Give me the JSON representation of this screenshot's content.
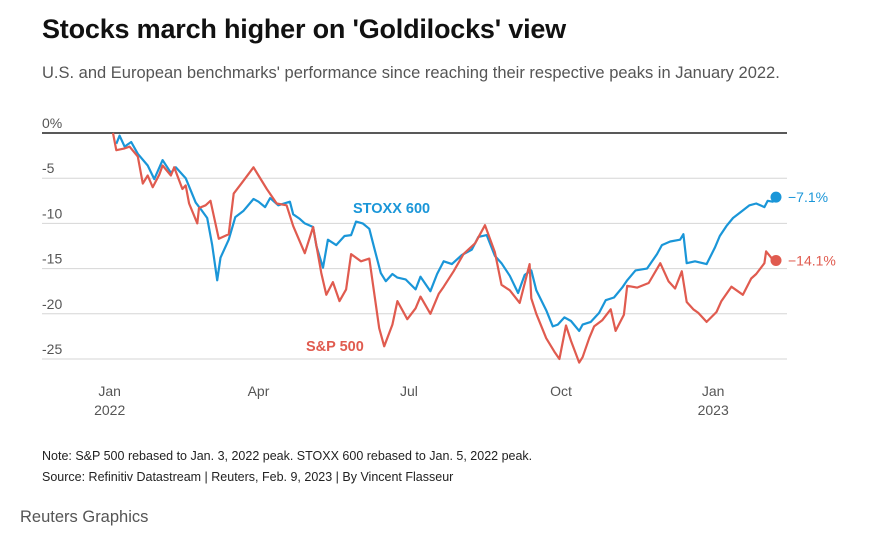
{
  "header": {
    "title": "Stocks march higher on 'Goldilocks' view",
    "subtitle": "U.S. and European benchmarks' performance since reaching their respective peaks in January 2022."
  },
  "footer": {
    "note": "Note: S&P 500 rebased to Jan. 3, 2022 peak. STOXX 600 rebased to Jan. 5, 2022 peak.",
    "source": "Source: Refinitiv Datastream | Reuters, Feb. 9, 2023 | By Vincent Flasseur",
    "brand": "Reuters Graphics"
  },
  "chart_data": {
    "type": "line",
    "title": "Stocks march higher on 'Goldilocks' view",
    "ylim": [
      -26,
      0
    ],
    "yticks": [
      {
        "value": 0,
        "label": "0%"
      },
      {
        "value": -5,
        "label": "-5"
      },
      {
        "value": -10,
        "label": "-10"
      },
      {
        "value": -15,
        "label": "-15"
      },
      {
        "value": -20,
        "label": "-20"
      },
      {
        "value": -25,
        "label": "-25"
      }
    ],
    "xlim": [
      "2022-01-01",
      "2023-02-09"
    ],
    "xticks": [
      {
        "date": "2022-01-01",
        "line1": "Jan",
        "line2": "2022"
      },
      {
        "date": "2022-04-01",
        "line1": "Apr",
        "line2": ""
      },
      {
        "date": "2022-07-01",
        "line1": "Jul",
        "line2": ""
      },
      {
        "date": "2022-10-01",
        "line1": "Oct",
        "line2": ""
      },
      {
        "date": "2023-01-01",
        "line1": "Jan",
        "line2": "2023"
      }
    ],
    "grid": true,
    "series": [
      {
        "name": "STOXX 600",
        "color": "#1a96d8",
        "end_label": "−7.1%",
        "points": [
          [
            "2022-01-05",
            -1.2
          ],
          [
            "2022-01-07",
            -0.3
          ],
          [
            "2022-01-10",
            -1.5
          ],
          [
            "2022-01-14",
            -1.0
          ],
          [
            "2022-01-18",
            -2.3
          ],
          [
            "2022-01-24",
            -3.6
          ],
          [
            "2022-01-28",
            -5.1
          ],
          [
            "2022-02-02",
            -3.0
          ],
          [
            "2022-02-07",
            -4.4
          ],
          [
            "2022-02-10",
            -3.8
          ],
          [
            "2022-02-16",
            -5.0
          ],
          [
            "2022-02-22",
            -7.7
          ],
          [
            "2022-02-25",
            -8.4
          ],
          [
            "2022-03-01",
            -9.4
          ],
          [
            "2022-03-04",
            -12.4
          ],
          [
            "2022-03-07",
            -16.3
          ],
          [
            "2022-03-09",
            -13.8
          ],
          [
            "2022-03-14",
            -11.8
          ],
          [
            "2022-03-18",
            -9.3
          ],
          [
            "2022-03-23",
            -8.6
          ],
          [
            "2022-03-29",
            -7.3
          ],
          [
            "2022-04-01",
            -7.6
          ],
          [
            "2022-04-05",
            -8.2
          ],
          [
            "2022-04-08",
            -7.2
          ],
          [
            "2022-04-13",
            -8.0
          ],
          [
            "2022-04-20",
            -7.6
          ],
          [
            "2022-04-22",
            -9.0
          ],
          [
            "2022-04-26",
            -9.5
          ],
          [
            "2022-04-29",
            -10.0
          ],
          [
            "2022-05-04",
            -10.4
          ],
          [
            "2022-05-06",
            -12.5
          ],
          [
            "2022-05-10",
            -14.9
          ],
          [
            "2022-05-13",
            -11.8
          ],
          [
            "2022-05-18",
            -12.4
          ],
          [
            "2022-05-23",
            -11.4
          ],
          [
            "2022-05-27",
            -11.3
          ],
          [
            "2022-05-30",
            -9.8
          ],
          [
            "2022-06-03",
            -10.0
          ],
          [
            "2022-06-07",
            -10.6
          ],
          [
            "2022-06-10",
            -12.7
          ],
          [
            "2022-06-14",
            -15.5
          ],
          [
            "2022-06-17",
            -16.4
          ],
          [
            "2022-06-21",
            -15.6
          ],
          [
            "2022-06-24",
            -16.0
          ],
          [
            "2022-06-29",
            -16.2
          ],
          [
            "2022-07-05",
            -17.3
          ],
          [
            "2022-07-08",
            -15.9
          ],
          [
            "2022-07-14",
            -17.5
          ],
          [
            "2022-07-18",
            -15.6
          ],
          [
            "2022-07-22",
            -14.2
          ],
          [
            "2022-07-27",
            -14.5
          ],
          [
            "2022-08-02",
            -13.5
          ],
          [
            "2022-08-08",
            -12.9
          ],
          [
            "2022-08-12",
            -11.5
          ],
          [
            "2022-08-17",
            -11.3
          ],
          [
            "2022-08-22",
            -13.6
          ],
          [
            "2022-08-26",
            -14.4
          ],
          [
            "2022-08-31",
            -15.8
          ],
          [
            "2022-09-05",
            -17.7
          ],
          [
            "2022-09-09",
            -15.7
          ],
          [
            "2022-09-13",
            -15.2
          ],
          [
            "2022-09-16",
            -17.4
          ],
          [
            "2022-09-22",
            -19.6
          ],
          [
            "2022-09-26",
            -21.4
          ],
          [
            "2022-09-29",
            -21.2
          ],
          [
            "2022-10-03",
            -20.4
          ],
          [
            "2022-10-07",
            -20.8
          ],
          [
            "2022-10-12",
            -21.9
          ],
          [
            "2022-10-14",
            -21.2
          ],
          [
            "2022-10-19",
            -20.9
          ],
          [
            "2022-10-24",
            -19.9
          ],
          [
            "2022-10-28",
            -18.5
          ],
          [
            "2022-11-02",
            -18.2
          ],
          [
            "2022-11-07",
            -17.1
          ],
          [
            "2022-11-10",
            -16.3
          ],
          [
            "2022-11-15",
            -15.2
          ],
          [
            "2022-11-22",
            -15.0
          ],
          [
            "2022-11-28",
            -13.4
          ],
          [
            "2022-12-01",
            -12.4
          ],
          [
            "2022-12-06",
            -12.0
          ],
          [
            "2022-12-12",
            -11.8
          ],
          [
            "2022-12-14",
            -11.2
          ],
          [
            "2022-12-16",
            -14.4
          ],
          [
            "2022-12-21",
            -14.2
          ],
          [
            "2022-12-28",
            -14.5
          ],
          [
            "2023-01-02",
            -12.7
          ],
          [
            "2023-01-05",
            -11.4
          ],
          [
            "2023-01-09",
            -10.3
          ],
          [
            "2023-01-13",
            -9.4
          ],
          [
            "2023-01-18",
            -8.7
          ],
          [
            "2023-01-23",
            -8.0
          ],
          [
            "2023-01-27",
            -7.8
          ],
          [
            "2023-02-01",
            -8.2
          ],
          [
            "2023-02-03",
            -7.5
          ],
          [
            "2023-02-06",
            -7.6
          ],
          [
            "2023-02-08",
            -7.1
          ]
        ]
      },
      {
        "name": "S&P 500",
        "color": "#e05b4f",
        "end_label": "−14.1%",
        "points": [
          [
            "2022-01-03",
            0.0
          ],
          [
            "2022-01-05",
            -1.9
          ],
          [
            "2022-01-10",
            -1.7
          ],
          [
            "2022-01-13",
            -1.5
          ],
          [
            "2022-01-18",
            -2.6
          ],
          [
            "2022-01-21",
            -5.6
          ],
          [
            "2022-01-24",
            -4.7
          ],
          [
            "2022-01-27",
            -6.0
          ],
          [
            "2022-01-31",
            -4.6
          ],
          [
            "2022-02-02",
            -3.6
          ],
          [
            "2022-02-07",
            -4.7
          ],
          [
            "2022-02-09",
            -3.8
          ],
          [
            "2022-02-14",
            -6.2
          ],
          [
            "2022-02-16",
            -5.8
          ],
          [
            "2022-02-18",
            -7.8
          ],
          [
            "2022-02-23",
            -10.0
          ],
          [
            "2022-02-24",
            -8.3
          ],
          [
            "2022-02-28",
            -8.0
          ],
          [
            "2022-03-03",
            -7.5
          ],
          [
            "2022-03-08",
            -11.7
          ],
          [
            "2022-03-14",
            -11.2
          ],
          [
            "2022-03-17",
            -6.7
          ],
          [
            "2022-03-22",
            -5.5
          ],
          [
            "2022-03-29",
            -3.8
          ],
          [
            "2022-04-01",
            -4.7
          ],
          [
            "2022-04-06",
            -6.2
          ],
          [
            "2022-04-12",
            -7.8
          ],
          [
            "2022-04-18",
            -8.0
          ],
          [
            "2022-04-22",
            -10.3
          ],
          [
            "2022-04-29",
            -13.3
          ],
          [
            "2022-05-04",
            -10.4
          ],
          [
            "2022-05-09",
            -15.5
          ],
          [
            "2022-05-12",
            -17.9
          ],
          [
            "2022-05-16",
            -16.5
          ],
          [
            "2022-05-20",
            -18.6
          ],
          [
            "2022-05-24",
            -17.3
          ],
          [
            "2022-05-27",
            -13.4
          ],
          [
            "2022-06-02",
            -14.2
          ],
          [
            "2022-06-07",
            -13.9
          ],
          [
            "2022-06-13",
            -21.6
          ],
          [
            "2022-06-16",
            -23.6
          ],
          [
            "2022-06-21",
            -21.2
          ],
          [
            "2022-06-24",
            -18.6
          ],
          [
            "2022-06-30",
            -20.6
          ],
          [
            "2022-07-05",
            -19.4
          ],
          [
            "2022-07-08",
            -18.1
          ],
          [
            "2022-07-14",
            -20.0
          ],
          [
            "2022-07-19",
            -17.8
          ],
          [
            "2022-07-22",
            -17.0
          ],
          [
            "2022-07-28",
            -15.3
          ],
          [
            "2022-08-03",
            -13.4
          ],
          [
            "2022-08-10",
            -12.2
          ],
          [
            "2022-08-16",
            -10.2
          ],
          [
            "2022-08-22",
            -13.2
          ],
          [
            "2022-08-26",
            -16.8
          ],
          [
            "2022-08-31",
            -17.4
          ],
          [
            "2022-09-06",
            -18.8
          ],
          [
            "2022-09-12",
            -14.5
          ],
          [
            "2022-09-13",
            -18.3
          ],
          [
            "2022-09-16",
            -20.0
          ],
          [
            "2022-09-22",
            -22.7
          ],
          [
            "2022-09-27",
            -24.2
          ],
          [
            "2022-09-30",
            -25.0
          ],
          [
            "2022-10-04",
            -21.3
          ],
          [
            "2022-10-07",
            -23.0
          ],
          [
            "2022-10-12",
            -25.4
          ],
          [
            "2022-10-14",
            -24.8
          ],
          [
            "2022-10-18",
            -22.7
          ],
          [
            "2022-10-21",
            -21.4
          ],
          [
            "2022-10-26",
            -20.7
          ],
          [
            "2022-10-31",
            -19.5
          ],
          [
            "2022-11-03",
            -21.9
          ],
          [
            "2022-11-08",
            -20.1
          ],
          [
            "2022-11-10",
            -16.9
          ],
          [
            "2022-11-16",
            -17.1
          ],
          [
            "2022-11-23",
            -16.6
          ],
          [
            "2022-11-30",
            -14.4
          ],
          [
            "2022-12-05",
            -16.4
          ],
          [
            "2022-12-09",
            -17.2
          ],
          [
            "2022-12-13",
            -15.3
          ],
          [
            "2022-12-16",
            -18.7
          ],
          [
            "2022-12-20",
            -19.5
          ],
          [
            "2022-12-23",
            -19.9
          ],
          [
            "2022-12-28",
            -20.9
          ],
          [
            "2023-01-03",
            -19.8
          ],
          [
            "2023-01-06",
            -18.6
          ],
          [
            "2023-01-12",
            -17.0
          ],
          [
            "2023-01-19",
            -17.9
          ],
          [
            "2023-01-24",
            -16.1
          ],
          [
            "2023-01-27",
            -15.6
          ],
          [
            "2023-02-01",
            -14.4
          ],
          [
            "2023-02-02",
            -13.1
          ],
          [
            "2023-02-06",
            -14.0
          ],
          [
            "2023-02-08",
            -14.1
          ]
        ]
      }
    ]
  }
}
